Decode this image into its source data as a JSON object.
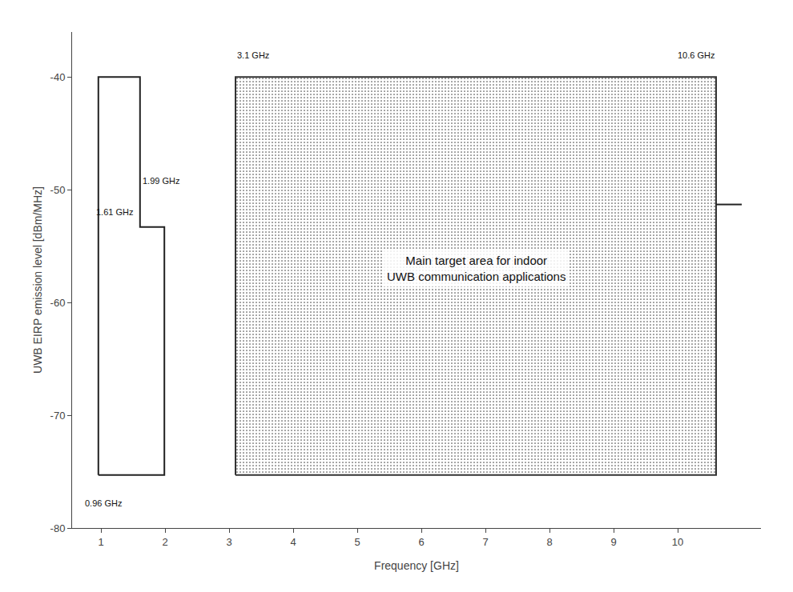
{
  "chart_data": {
    "type": "line",
    "xlabel": "Frequency [GHz]",
    "ylabel": "UWB EIRP emission level [dBm/MHz]",
    "xlim": [
      0.55,
      11.3
    ],
    "ylim": [
      -80,
      -36
    ],
    "xticks": [
      1,
      2,
      3,
      4,
      5,
      6,
      7,
      8,
      9,
      10
    ],
    "yticks": [
      -80,
      -70,
      -60,
      -50,
      -40
    ],
    "grid": false,
    "series": [
      {
        "type": "area",
        "color": "#333333",
        "x": [
          3.1,
          10.6,
          10.6,
          3.1,
          3.1
        ],
        "values": [
          -75.3,
          -75.3,
          -40.0,
          -40.0,
          -75.3
        ]
      },
      {
        "type": "line",
        "color": "#222222",
        "x": [
          0.96,
          0.96,
          1.61,
          1.61,
          1.99,
          1.99,
          0.96
        ],
        "values": [
          -75.3,
          -40.0,
          -40.0,
          -53.3,
          -53.3,
          -75.3,
          -75.3
        ]
      },
      {
        "type": "line",
        "color": "#222222",
        "x": [
          10.6,
          11.0
        ],
        "values": [
          -51.3,
          -51.3
        ]
      }
    ],
    "annotations": [
      {
        "text": "Main target area for indoor\nUWB communication applications",
        "x": 6.85,
        "y": -57.0
      },
      {
        "text": "0.96 GHz",
        "x": 0.72,
        "y": -77.2
      },
      {
        "text": "1.61 GHz",
        "x": 1.52,
        "y": -52.5
      },
      {
        "text": "1.99 GHz",
        "x": 1.62,
        "y": -49.8
      },
      {
        "text": "3.1 GHz",
        "x": 3.1,
        "y": -38.6
      },
      {
        "text": "10.6 GHz",
        "x": 10.6,
        "y": -38.6
      }
    ]
  }
}
